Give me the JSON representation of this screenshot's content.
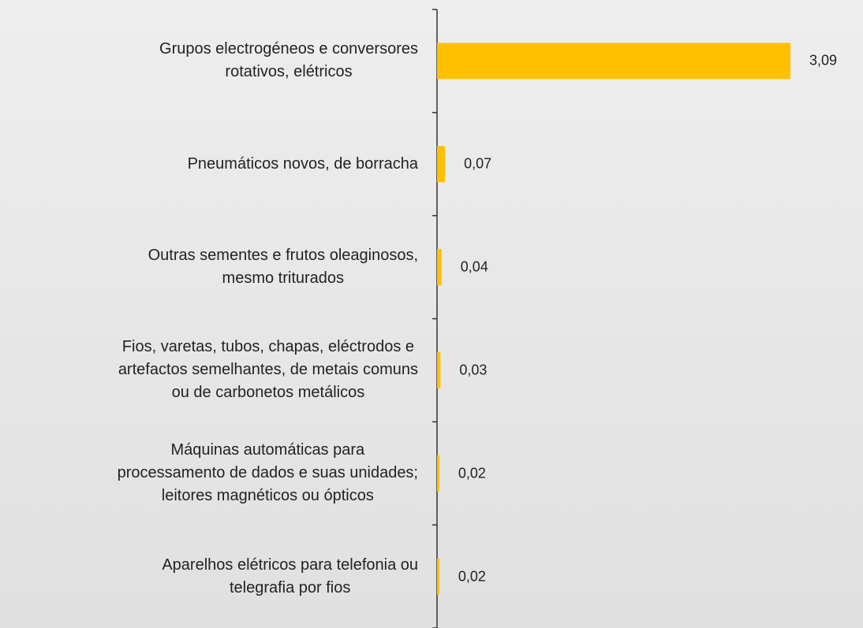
{
  "chart_data": {
    "type": "hbar",
    "categories": [
      "Grupos electrogéneos e conversores\nrotativos, elétricos",
      "Pneumáticos novos, de borracha",
      "Outras sementes e frutos oleaginosos,\nmesmo triturados",
      "Fios, varetas, tubos, chapas, eléctrodos e\nartefactos semelhantes, de metais comuns\nou de carbonetos metálicos",
      "Máquinas automáticas para\nprocessamento de dados e suas unidades;\nleitores magnéticos ou ópticos",
      "Aparelhos elétricos para telefonia ou\ntelegrafia por fios"
    ],
    "values": [
      3.09,
      0.07,
      0.04,
      0.03,
      0.02,
      0.02
    ],
    "value_labels": [
      "3,09",
      "0,07",
      "0,04",
      "0,03",
      "0,02",
      "0,02"
    ],
    "color": "#ffc000"
  }
}
